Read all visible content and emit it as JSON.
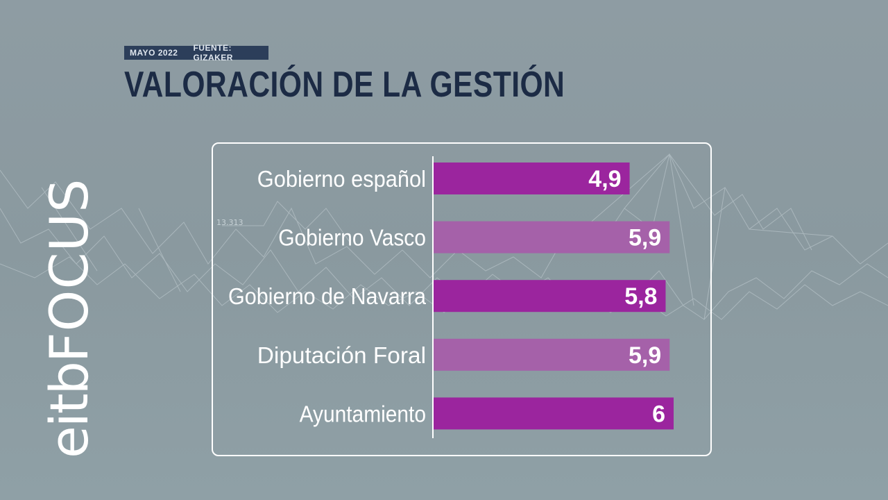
{
  "header": {
    "date": "MAYO 2022",
    "source": "FUENTE: GIZAKER",
    "title": "VALORACIÓN DE LA GESTIÓN"
  },
  "background": {
    "number_label": "13.313"
  },
  "logo": {
    "eitb": "eitb",
    "focus": "FOCUS"
  },
  "colors": {
    "bar_dark": "#9b259e",
    "bar_light": "#a561a9",
    "text_white": "#ffffff",
    "title_navy": "#1c2b45"
  },
  "chart_data": {
    "type": "bar",
    "orientation": "horizontal",
    "title": "VALORACIÓN DE LA GESTIÓN",
    "categories": [
      "Gobierno español",
      "Gobierno Vasco",
      "Gobierno de Navarra",
      "Diputación Foral",
      "Ayuntamiento"
    ],
    "values": [
      4.9,
      5.9,
      5.8,
      5.9,
      6
    ],
    "value_labels": [
      "4,9",
      "5,9",
      "5,8",
      "5,9",
      "6"
    ],
    "bar_colors": [
      "#9b259e",
      "#a561a9",
      "#9b259e",
      "#a561a9",
      "#9b259e"
    ],
    "xlim": [
      0,
      6
    ],
    "grid": false,
    "legend": "none"
  }
}
